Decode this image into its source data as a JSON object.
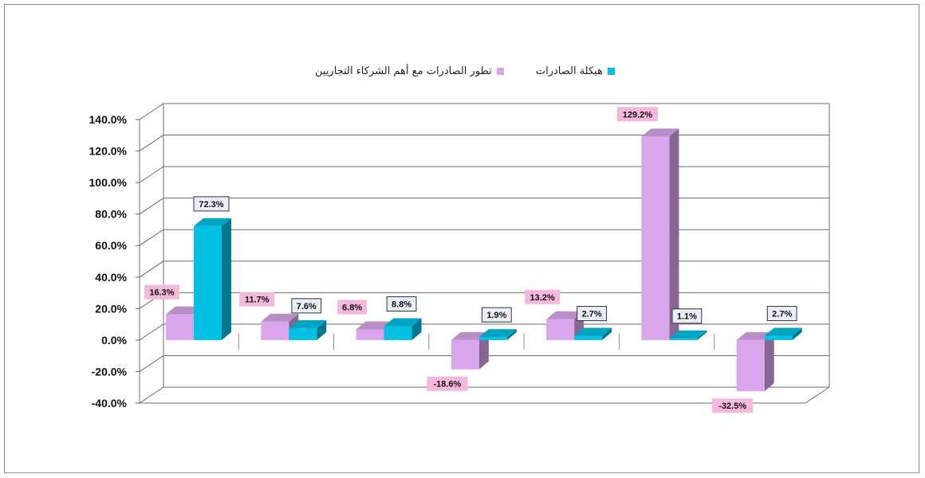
{
  "chart_data": {
    "type": "bar",
    "categories": [
      "",
      "",
      "",
      "",
      "",
      "",
      ""
    ],
    "series": [
      {
        "name": "تطور الصادرات مع أهم الشركاء التجاريين",
        "color": "#d9a6eb",
        "label_bg": "#f4b8dc",
        "values": [
          16.3,
          11.7,
          6.8,
          -18.6,
          13.2,
          129.2,
          -32.5
        ],
        "labels": [
          "16.3%",
          "11.7%",
          "6.8%",
          "-18.6%",
          "13.2%",
          "129.2%",
          "-32.5%"
        ]
      },
      {
        "name": "هيكلة الصادرات",
        "color": "#00c0e4",
        "label_bg": "#e9eef6",
        "values": [
          72.3,
          7.6,
          8.8,
          1.9,
          2.7,
          1.1,
          2.7
        ],
        "labels": [
          "72.3%",
          "7.6%",
          "8.8%",
          "1.9%",
          "2.7%",
          "1.1%",
          "2.7%"
        ]
      }
    ],
    "ylim": [
      -40,
      140
    ],
    "yticks": [
      140,
      120,
      100,
      80,
      60,
      40,
      20,
      0,
      -20,
      -40
    ],
    "ytick_labels": [
      "140.0%",
      "120.0%",
      "100.0%",
      "80.0%",
      "60.0%",
      "40.0%",
      "20.0%",
      "0.0%",
      "-20.0%",
      "-40.0%"
    ],
    "grid": true,
    "legend_position": "top-center",
    "title": "",
    "xlabel": "",
    "ylabel": ""
  }
}
